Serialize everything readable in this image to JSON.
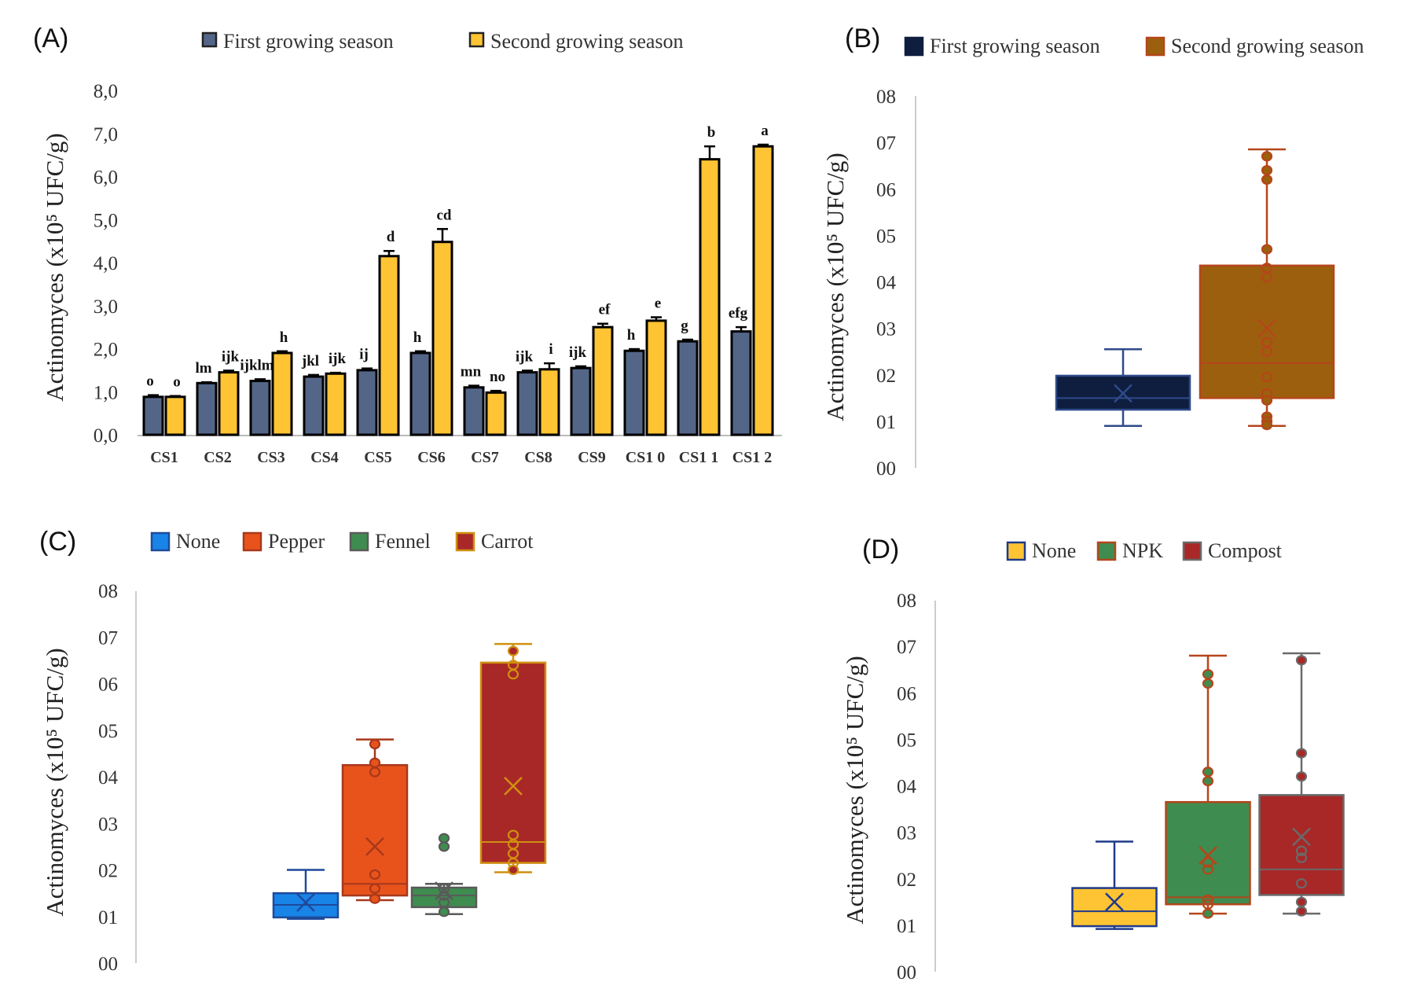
{
  "chart_data": [
    {
      "id": "A",
      "type": "bar",
      "panel_label": "(A)",
      "title": "",
      "xlabel": "",
      "ylabel": "Actinomyces (x10⁵ UFC/g)",
      "ylim": [
        0,
        8
      ],
      "yticks": [
        "0,0",
        "1,0",
        "2,0",
        "3,0",
        "4,0",
        "5,0",
        "6,0",
        "7,0",
        "8,0"
      ],
      "grid": false,
      "legend_position": "top",
      "categories": [
        "CS1",
        "CS2",
        "CS3",
        "CS4",
        "CS5",
        "CS6",
        "CS7",
        "CS8",
        "CS9",
        "CS1 0",
        "CS1 1",
        "CS1 2"
      ],
      "series": [
        {
          "name": "First growing season",
          "color": "#546688",
          "values": [
            0.88,
            1.2,
            1.25,
            1.35,
            1.5,
            1.9,
            1.1,
            1.45,
            1.55,
            1.95,
            2.17,
            2.4
          ],
          "errors": [
            0.04,
            0.02,
            0.04,
            0.04,
            0.04,
            0.04,
            0.04,
            0.04,
            0.04,
            0.04,
            0.04,
            0.1
          ],
          "labels": [
            "o",
            "lm",
            "ijklm",
            "jkl",
            "ij",
            "h",
            "mn",
            "ijk",
            "ijk",
            "h",
            "g",
            "efg"
          ]
        },
        {
          "name": "Second growing season",
          "color": "#FFC433",
          "values": [
            0.88,
            1.45,
            1.9,
            1.42,
            4.15,
            4.48,
            0.98,
            1.52,
            2.5,
            2.65,
            6.4,
            6.7
          ],
          "errors": [
            0.02,
            0.04,
            0.04,
            0.02,
            0.12,
            0.3,
            0.04,
            0.14,
            0.08,
            0.08,
            0.3,
            0.04
          ],
          "labels": [
            "o",
            "ijk",
            "h",
            "ijk",
            "d",
            "cd",
            "no",
            "i",
            "ef",
            "e",
            "b",
            "a"
          ]
        }
      ]
    },
    {
      "id": "B",
      "type": "box",
      "panel_label": "(B)",
      "ylabel": "Actinomyces (x10⁵ UFC/g)",
      "ylim": [
        0,
        8
      ],
      "yticks": [
        "00",
        "01",
        "02",
        "03",
        "04",
        "05",
        "06",
        "07",
        "08"
      ],
      "grid": false,
      "legend_position": "top",
      "series": [
        {
          "name": "First growing season",
          "fill": "#0F1E3E",
          "stroke": "#2E4A8A",
          "min": 0.9,
          "q1": 1.25,
          "median": 1.5,
          "q3": 1.98,
          "max": 2.55,
          "mean": 1.6,
          "points": []
        },
        {
          "name": "Second growing season",
          "fill": "#9C5F0D",
          "stroke": "#B5461A",
          "min": 0.9,
          "q1": 1.5,
          "median": 2.25,
          "q3": 4.35,
          "max": 6.85,
          "mean": 3.0,
          "points": [
            6.7,
            6.4,
            6.2,
            4.7,
            4.3,
            4.1,
            2.7,
            2.5,
            1.95,
            1.6,
            1.45,
            1.1,
            1.0,
            0.92
          ]
        }
      ]
    },
    {
      "id": "C",
      "type": "box",
      "panel_label": "(C)",
      "ylabel": "Actinomyces (x10⁵ UFC/g)",
      "ylim": [
        0,
        8
      ],
      "yticks": [
        "00",
        "01",
        "02",
        "03",
        "04",
        "05",
        "06",
        "07",
        "08"
      ],
      "grid": false,
      "legend_position": "top",
      "series": [
        {
          "name": "None",
          "fill": "#1884E8",
          "stroke": "#1F4A9A",
          "min": 0.95,
          "q1": 0.98,
          "median": 1.25,
          "q3": 1.5,
          "max": 2.0,
          "mean": 1.3,
          "points": []
        },
        {
          "name": "Pepper",
          "fill": "#E8531C",
          "stroke": "#A8381A",
          "min": 1.35,
          "q1": 1.45,
          "median": 1.7,
          "q3": 4.25,
          "max": 4.8,
          "mean": 2.5,
          "points": [
            4.7,
            4.3,
            4.1,
            1.9,
            1.6,
            1.38
          ]
        },
        {
          "name": "Fennel",
          "fill": "#3F8C50",
          "stroke": "#5A5A5A",
          "min": 1.05,
          "q1": 1.2,
          "median": 1.45,
          "q3": 1.62,
          "max": 1.7,
          "mean": 1.55,
          "points": [
            2.68,
            2.5,
            1.6,
            1.45,
            1.3,
            1.1
          ]
        },
        {
          "name": "Carrot",
          "fill": "#A82828",
          "stroke": "#D09010",
          "min": 1.95,
          "q1": 2.15,
          "median": 2.6,
          "q3": 6.45,
          "max": 6.85,
          "mean": 3.8,
          "points": [
            6.7,
            6.4,
            6.2,
            2.75,
            2.55,
            2.35,
            2.15,
            2.0
          ]
        }
      ]
    },
    {
      "id": "D",
      "type": "box",
      "panel_label": "(D)",
      "ylabel": "Actinomyces (x10⁵ UFC/g)",
      "ylim": [
        0,
        8
      ],
      "yticks": [
        "00",
        "01",
        "02",
        "03",
        "04",
        "05",
        "06",
        "07",
        "08"
      ],
      "grid": false,
      "legend_position": "top",
      "series": [
        {
          "name": "None",
          "fill": "#FFC433",
          "stroke": "#1F3A8A",
          "min": 0.92,
          "q1": 0.98,
          "median": 1.3,
          "q3": 1.8,
          "max": 2.8,
          "mean": 1.5,
          "points": []
        },
        {
          "name": "NPK",
          "fill": "#3F8C50",
          "stroke": "#B5461A",
          "min": 1.25,
          "q1": 1.45,
          "median": 1.6,
          "q3": 3.65,
          "max": 6.8,
          "mean": 2.5,
          "points": [
            6.4,
            6.2,
            4.3,
            4.1,
            2.35,
            2.2,
            1.55,
            1.45,
            1.25
          ]
        },
        {
          "name": "Compost",
          "fill": "#A82828",
          "stroke": "#6A6A6A",
          "min": 1.25,
          "q1": 1.65,
          "median": 2.2,
          "q3": 3.8,
          "max": 6.85,
          "mean": 2.9,
          "points": [
            6.7,
            4.7,
            4.2,
            2.6,
            2.45,
            1.9,
            1.5,
            1.3
          ]
        }
      ]
    }
  ]
}
